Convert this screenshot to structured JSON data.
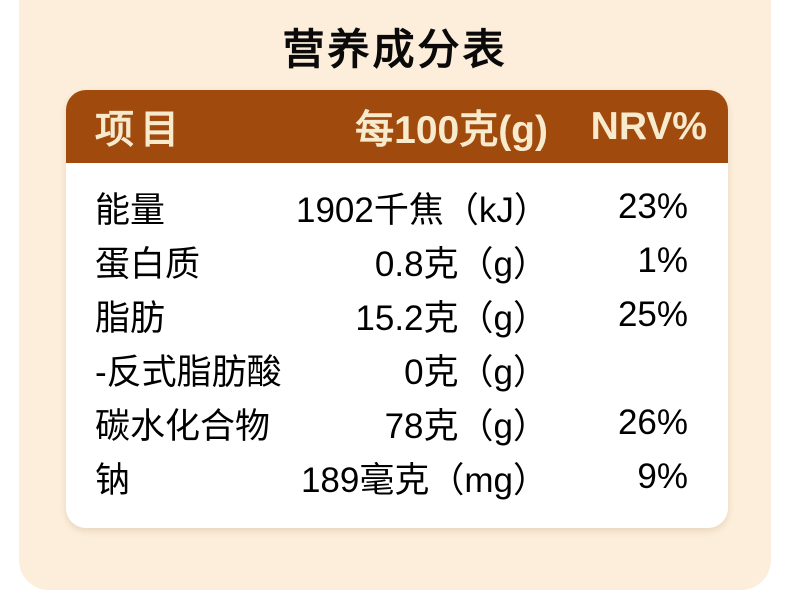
{
  "title": "营养成分表",
  "table": {
    "header": {
      "item": "项目",
      "per100g": "每100克(g)",
      "nrv": "NRV%"
    },
    "rows": [
      {
        "name": "能量",
        "value": "1902千焦（kJ）",
        "nrv": "23%"
      },
      {
        "name": "蛋白质",
        "value": "0.8克（g）",
        "nrv": "1%"
      },
      {
        "name": "脂肪",
        "value": "15.2克（g）",
        "nrv": "25%"
      },
      {
        "name": "-反式脂肪酸",
        "value": "0克（g）",
        "nrv": ""
      },
      {
        "name": "碳水化合物",
        "value": "78克（g）",
        "nrv": "26%"
      },
      {
        "name": "钠",
        "value": "189毫克（mg）",
        "nrv": "9%"
      }
    ]
  },
  "colors": {
    "page_background": "#ffffff",
    "panel_background": "#fceeda",
    "header_background": "#a04a0d",
    "header_text": "#f7eacd",
    "body_text": "#000000",
    "card_background": "#ffffff"
  }
}
